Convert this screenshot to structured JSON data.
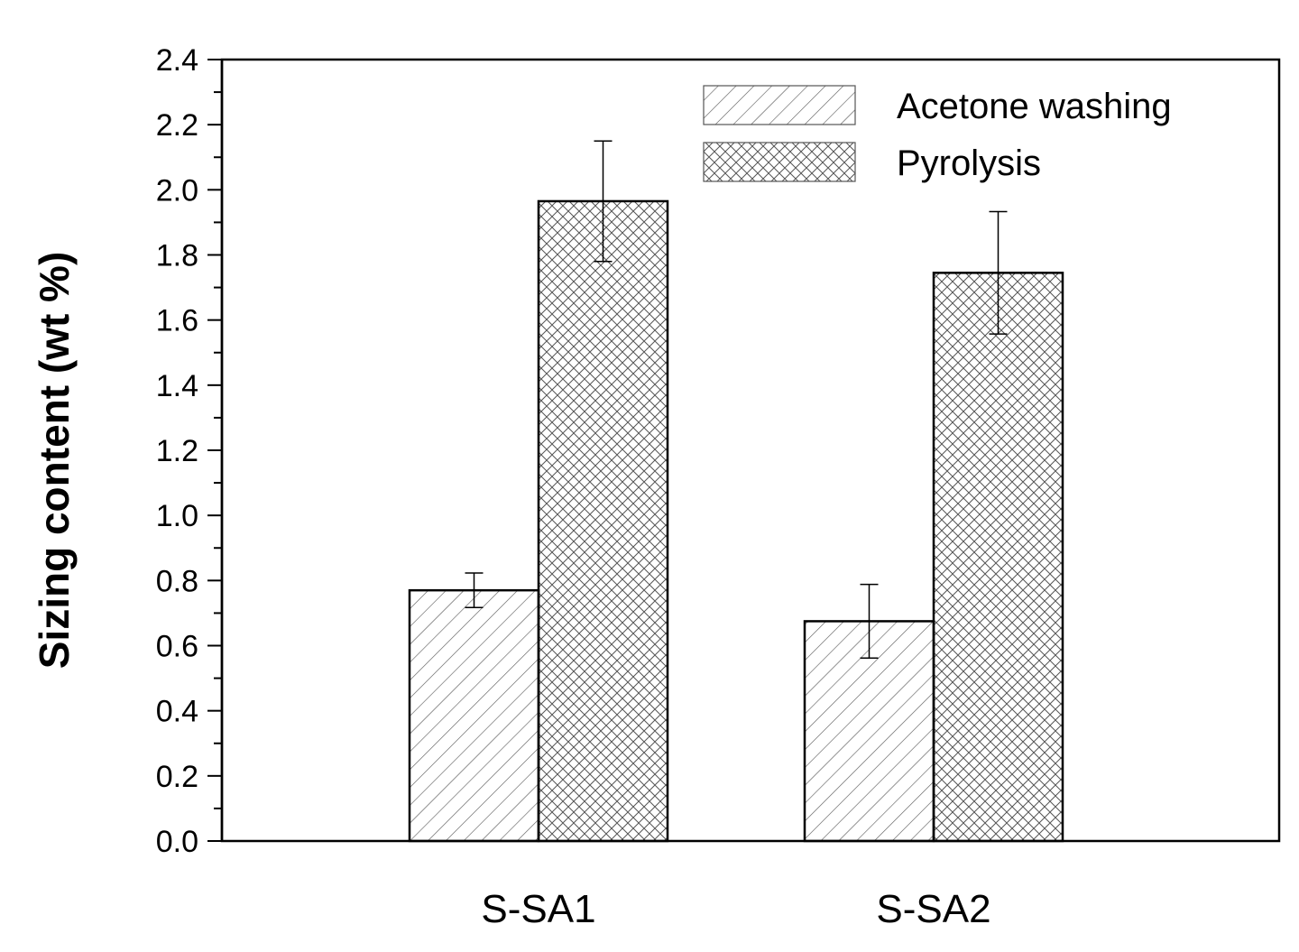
{
  "chart_data": {
    "type": "bar",
    "title": "",
    "xlabel": "",
    "ylabel": "Sizing content (wt %)",
    "categories": [
      "S-SA1",
      "S-SA2"
    ],
    "ylim": [
      0,
      2.4
    ],
    "yticks": [
      "0.0",
      "0.2",
      "0.4",
      "0.6",
      "0.8",
      "1.0",
      "1.2",
      "1.4",
      "1.6",
      "1.8",
      "2.0",
      "2.2",
      "2.4"
    ],
    "grid": false,
    "legend_position": "top-right",
    "series": [
      {
        "name": "Acetone washing",
        "pattern": "diagonal-hatch",
        "values": [
          0.77,
          0.675
        ],
        "errors": [
          0.053,
          0.113
        ]
      },
      {
        "name": "Pyrolysis",
        "pattern": "cross-hatch",
        "values": [
          1.965,
          1.745
        ],
        "errors": [
          0.185,
          0.188
        ]
      }
    ],
    "colors": {
      "stroke": "#000000",
      "hatch": "#555555",
      "background": "#ffffff"
    }
  }
}
